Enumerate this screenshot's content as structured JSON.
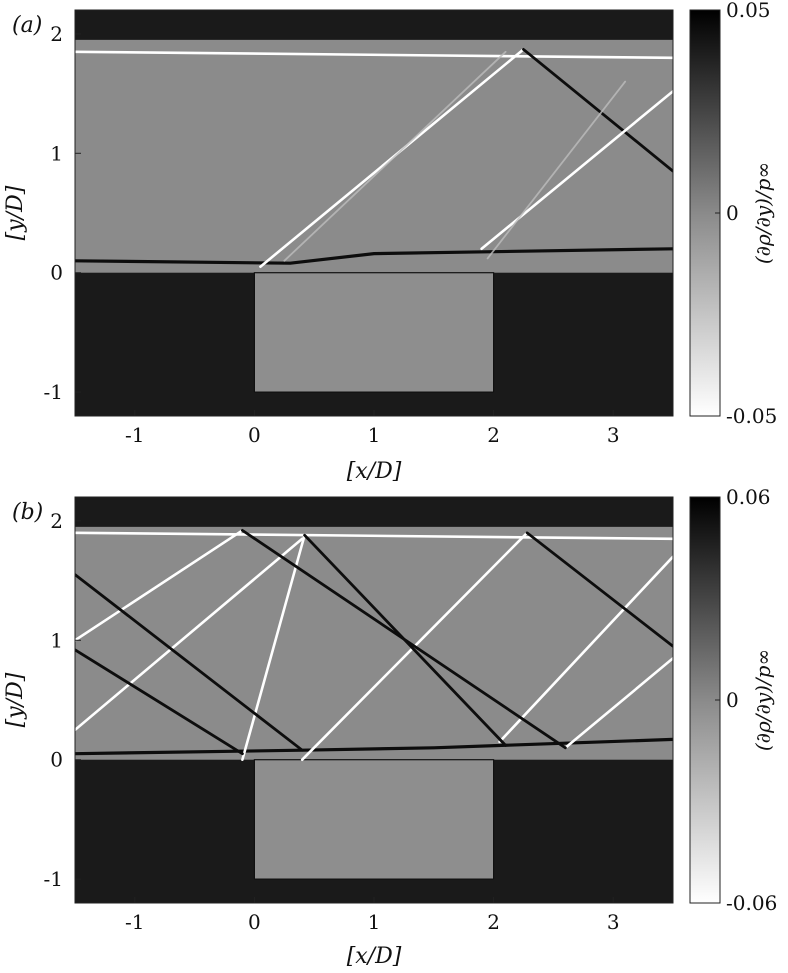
{
  "figure": {
    "panels": [
      {
        "panel_label": "(a)",
        "xlabel": "[x/D]",
        "ylabel": "[y/D]",
        "colorbar_label": "(∂ρ/∂y)/p∞",
        "colorbar_ticks": [
          "0.05",
          "0",
          "-0.05"
        ],
        "x_ticks": [
          "-1",
          "0",
          "1",
          "2",
          "3"
        ],
        "y_ticks": [
          "2",
          "1",
          "0",
          "-1"
        ]
      },
      {
        "panel_label": "(b)",
        "xlabel": "[x/D]",
        "ylabel": "[y/D]",
        "colorbar_label": "(∂ρ/∂y)/p∞",
        "colorbar_ticks": [
          "0.06",
          "0",
          "-0.06"
        ],
        "x_ticks": [
          "-1",
          "0",
          "1",
          "2",
          "3"
        ],
        "y_ticks": [
          "2",
          "1",
          "0",
          "-1"
        ]
      }
    ]
  },
  "chart_data": [
    {
      "type": "heatmap",
      "panel": "(a)",
      "xlabel": "[x/D]",
      "ylabel": "[y/D]",
      "xlim": [
        -1.5,
        3.5
      ],
      "ylim": [
        -1.2,
        2.2
      ],
      "colorbar": {
        "label": "(∂ρ/∂y)/p∞",
        "min": -0.05,
        "max": 0.05,
        "colormap": "gray (white=min, black=max)"
      },
      "geometry": {
        "cavity": {
          "x": [
            0,
            2
          ],
          "y": [
            -1,
            0
          ]
        },
        "top_wall_y": 1.95
      },
      "features": [
        {
          "kind": "shear_layer",
          "sign": "dark",
          "points": [
            [
              -1.5,
              0.1
            ],
            [
              0.3,
              0.08
            ],
            [
              1.0,
              0.16
            ],
            [
              3.5,
              0.2
            ]
          ]
        },
        {
          "kind": "wall_line",
          "sign": "light",
          "points": [
            [
              -1.5,
              1.85
            ],
            [
              3.5,
              1.8
            ]
          ]
        },
        {
          "kind": "shock",
          "sign": "light",
          "points": [
            [
              0.05,
              0.05
            ],
            [
              2.25,
              1.87
            ]
          ]
        },
        {
          "kind": "shock",
          "sign": "dark",
          "points": [
            [
              2.25,
              1.87
            ],
            [
              3.5,
              0.85
            ]
          ]
        },
        {
          "kind": "shock",
          "sign": "light",
          "points": [
            [
              1.9,
              0.2
            ],
            [
              3.5,
              1.52
            ]
          ]
        },
        {
          "kind": "shock",
          "sign": "faint",
          "points": [
            [
              0.25,
              0.1
            ],
            [
              2.1,
              1.85
            ]
          ]
        },
        {
          "kind": "shock",
          "sign": "faint",
          "points": [
            [
              1.95,
              0.12
            ],
            [
              3.1,
              1.6
            ]
          ]
        }
      ]
    },
    {
      "type": "heatmap",
      "panel": "(b)",
      "xlabel": "[x/D]",
      "ylabel": "[y/D]",
      "xlim": [
        -1.5,
        3.5
      ],
      "ylim": [
        -1.2,
        2.2
      ],
      "colorbar": {
        "label": "(∂ρ/∂y)/p∞",
        "min": -0.06,
        "max": 0.06,
        "colormap": "gray (white=min, black=max)"
      },
      "geometry": {
        "cavity": {
          "x": [
            0,
            2
          ],
          "y": [
            -1,
            0
          ]
        },
        "top_wall_y": 1.95
      },
      "features": [
        {
          "kind": "shear_layer",
          "sign": "dark",
          "points": [
            [
              -1.5,
              0.05
            ],
            [
              0.4,
              0.08
            ],
            [
              1.5,
              0.1
            ],
            [
              3.5,
              0.17
            ]
          ]
        },
        {
          "kind": "wall_line",
          "sign": "light",
          "points": [
            [
              -1.5,
              1.9
            ],
            [
              3.5,
              1.85
            ]
          ]
        },
        {
          "kind": "shock",
          "sign": "light",
          "points": [
            [
              -1.5,
              1.0
            ],
            [
              -0.1,
              1.92
            ]
          ]
        },
        {
          "kind": "shock",
          "sign": "light",
          "points": [
            [
              -0.1,
              0.0
            ],
            [
              0.42,
              1.88
            ]
          ]
        },
        {
          "kind": "shock",
          "sign": "light",
          "points": [
            [
              0.4,
              0.0
            ],
            [
              2.28,
              1.9
            ]
          ]
        },
        {
          "kind": "shock",
          "sign": "light",
          "points": [
            [
              2.05,
              0.15
            ],
            [
              3.5,
              1.7
            ]
          ]
        },
        {
          "kind": "shock",
          "sign": "light",
          "points": [
            [
              2.6,
              0.1
            ],
            [
              3.5,
              0.85
            ]
          ]
        },
        {
          "kind": "shock",
          "sign": "light",
          "points": [
            [
              -1.5,
              0.25
            ],
            [
              0.4,
              1.85
            ]
          ]
        },
        {
          "kind": "shock",
          "sign": "dark",
          "points": [
            [
              -1.5,
              1.55
            ],
            [
              0.4,
              0.08
            ]
          ]
        },
        {
          "kind": "shock",
          "sign": "dark",
          "points": [
            [
              -1.5,
              0.92
            ],
            [
              -0.1,
              0.05
            ]
          ]
        },
        {
          "kind": "shock",
          "sign": "dark",
          "points": [
            [
              -0.1,
              1.92
            ],
            [
              2.6,
              0.1
            ]
          ]
        },
        {
          "kind": "shock",
          "sign": "dark",
          "points": [
            [
              0.42,
              1.88
            ],
            [
              2.1,
              0.12
            ]
          ]
        },
        {
          "kind": "shock",
          "sign": "dark",
          "points": [
            [
              2.28,
              1.9
            ],
            [
              3.5,
              0.95
            ]
          ]
        }
      ]
    }
  ]
}
